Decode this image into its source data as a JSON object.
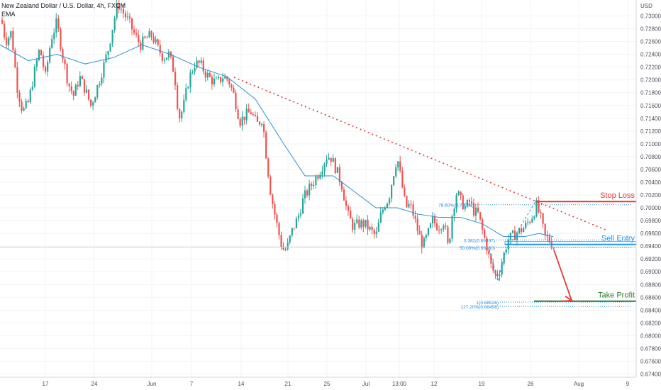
{
  "header": {
    "title": "New Zealand Dollar / U.S. Dollar, 4h, FXCM",
    "indicator": "EMA"
  },
  "colors": {
    "up": "#26a69a",
    "down": "#ef5350",
    "ema": "#2f8fd3",
    "trendline": "#e53935",
    "stop_loss": "#e53935",
    "sell_entry": "#2196f3",
    "take_profit": "#2e7d32",
    "fib": "#1f88e5",
    "last_price": "#f23645",
    "grid": "#f2f3f5"
  },
  "chart_data": {
    "type": "candlestick",
    "symbol": "NZDUSD",
    "timeframe": "4h",
    "yaxis": {
      "unit": "USD",
      "ylim": [
        0.6735,
        0.7325
      ],
      "ticks": [
        "0.73000",
        "0.72800",
        "0.72600",
        "0.72400",
        "0.72200",
        "0.72000",
        "0.71800",
        "0.71600",
        "0.71400",
        "0.71200",
        "0.71000",
        "0.70800",
        "0.70600",
        "0.70400",
        "0.70200",
        "0.70000",
        "0.69800",
        "0.69600",
        "0.69400",
        "0.69200",
        "0.69000",
        "0.68800",
        "0.68600",
        "0.68400",
        "0.68200",
        "0.68000",
        "0.67800",
        "0.67600",
        "0.67400"
      ]
    },
    "xaxis": {
      "labels": [
        "17",
        "24",
        "Jun",
        "7",
        "14",
        "21",
        "25",
        "Jul",
        "13:00",
        "12",
        "19",
        "26",
        "Aug",
        "9"
      ]
    },
    "price_path": [
      [
        0,
        0.7305
      ],
      [
        8,
        0.726
      ],
      [
        16,
        0.7275
      ],
      [
        24,
        0.719
      ],
      [
        32,
        0.715
      ],
      [
        40,
        0.7165
      ],
      [
        48,
        0.721
      ],
      [
        56,
        0.725
      ],
      [
        64,
        0.7205
      ],
      [
        72,
        0.7265
      ],
      [
        80,
        0.729
      ],
      [
        88,
        0.724
      ],
      [
        96,
        0.7195
      ],
      [
        104,
        0.7175
      ],
      [
        112,
        0.7205
      ],
      [
        120,
        0.7185
      ],
      [
        128,
        0.716
      ],
      [
        136,
        0.7185
      ],
      [
        144,
        0.7215
      ],
      [
        152,
        0.7245
      ],
      [
        160,
        0.729
      ],
      [
        166,
        0.732
      ],
      [
        174,
        0.7305
      ],
      [
        182,
        0.729
      ],
      [
        190,
        0.727
      ],
      [
        198,
        0.7255
      ],
      [
        206,
        0.7265
      ],
      [
        214,
        0.727
      ],
      [
        222,
        0.725
      ],
      [
        230,
        0.7235
      ],
      [
        238,
        0.724
      ],
      [
        246,
        0.721
      ],
      [
        252,
        0.714
      ],
      [
        258,
        0.7155
      ],
      [
        266,
        0.72
      ],
      [
        274,
        0.7225
      ],
      [
        282,
        0.7225
      ],
      [
        290,
        0.721
      ],
      [
        298,
        0.72
      ],
      [
        306,
        0.7195
      ],
      [
        314,
        0.7205
      ],
      [
        322,
        0.72
      ],
      [
        330,
        0.7175
      ],
      [
        338,
        0.7135
      ],
      [
        346,
        0.7145
      ],
      [
        354,
        0.715
      ],
      [
        362,
        0.713
      ],
      [
        370,
        0.714
      ],
      [
        376,
        0.7075
      ],
      [
        382,
        0.702
      ],
      [
        390,
        0.6975
      ],
      [
        398,
        0.6935
      ],
      [
        404,
        0.6935
      ],
      [
        412,
        0.6965
      ],
      [
        420,
        0.6985
      ],
      [
        428,
        0.7015
      ],
      [
        436,
        0.703
      ],
      [
        444,
        0.7045
      ],
      [
        452,
        0.706
      ],
      [
        460,
        0.708
      ],
      [
        466,
        0.708
      ],
      [
        474,
        0.706
      ],
      [
        482,
        0.7035
      ],
      [
        490,
        0.699
      ],
      [
        498,
        0.697
      ],
      [
        506,
        0.6975
      ],
      [
        514,
        0.6975
      ],
      [
        522,
        0.6965
      ],
      [
        530,
        0.6955
      ],
      [
        536,
        0.6985
      ],
      [
        542,
        0.7005
      ],
      [
        548,
        0.7015
      ],
      [
        554,
        0.705
      ],
      [
        560,
        0.708
      ],
      [
        566,
        0.704
      ],
      [
        572,
        0.7
      ],
      [
        578,
        0.7005
      ],
      [
        584,
        0.6985
      ],
      [
        590,
        0.696
      ],
      [
        596,
        0.694
      ],
      [
        602,
        0.6955
      ],
      [
        610,
        0.698
      ],
      [
        618,
        0.697
      ],
      [
        626,
        0.698
      ],
      [
        632,
        0.6935
      ],
      [
        638,
        0.6995
      ],
      [
        644,
        0.7025
      ],
      [
        650,
        0.701
      ],
      [
        656,
        0.7
      ],
      [
        662,
        0.701
      ],
      [
        668,
        0.6995
      ],
      [
        674,
        0.699
      ],
      [
        680,
        0.6965
      ],
      [
        686,
        0.694
      ],
      [
        692,
        0.691
      ],
      [
        698,
        0.6895
      ],
      [
        704,
        0.69
      ],
      [
        710,
        0.6925
      ],
      [
        716,
        0.695
      ],
      [
        722,
        0.6955
      ],
      [
        728,
        0.696
      ],
      [
        734,
        0.6965
      ],
      [
        740,
        0.697
      ],
      [
        746,
        0.698
      ],
      [
        752,
        0.699
      ],
      [
        756,
        0.7005
      ],
      [
        762,
        0.6985
      ],
      [
        768,
        0.6955
      ],
      [
        774,
        0.695
      ],
      [
        780,
        0.694
      ]
    ],
    "ema_path": [
      [
        0,
        0.7255
      ],
      [
        40,
        0.723
      ],
      [
        80,
        0.724
      ],
      [
        120,
        0.7225
      ],
      [
        160,
        0.7235
      ],
      [
        200,
        0.7255
      ],
      [
        240,
        0.724
      ],
      [
        280,
        0.722
      ],
      [
        320,
        0.7205
      ],
      [
        360,
        0.717
      ],
      [
        400,
        0.71
      ],
      [
        430,
        0.705
      ],
      [
        470,
        0.705
      ],
      [
        500,
        0.7025
      ],
      [
        530,
        0.7
      ],
      [
        560,
        0.7
      ],
      [
        590,
        0.699
      ],
      [
        620,
        0.6985
      ],
      [
        650,
        0.6985
      ],
      [
        680,
        0.6975
      ],
      [
        710,
        0.6955
      ],
      [
        740,
        0.6955
      ],
      [
        760,
        0.696
      ],
      [
        780,
        0.6955
      ]
    ],
    "trendline": {
      "from": [
        330,
        0.7204
      ],
      "to": [
        855,
        0.6965
      ]
    },
    "levels": {
      "stop_loss": {
        "label": "Stop Loss",
        "price": 0.70098,
        "tag": "0.70098",
        "x_from": 755
      },
      "sell_entry": {
        "label": "Sell Entry",
        "price": 0.69427,
        "tag": "0.69427",
        "x_from": 712
      },
      "take_profit": {
        "label": "Take Profit",
        "price": 0.6854,
        "tag": "0.68540",
        "x_from": 753
      },
      "last_price": {
        "price": 0.69385,
        "tag": "0.69385"
      }
    },
    "fib_lines": [
      {
        "label": "78.60%(0.70048)",
        "price": 0.70048
      },
      {
        "label": "0.382(0.69497)",
        "price": 0.69497
      },
      {
        "label": "50.00%(0.69380)",
        "price": 0.6938
      },
      {
        "label": "1(0.68526)",
        "price": 0.68526
      },
      {
        "label": "127.20%(0.68458)",
        "price": 0.68458
      }
    ],
    "abc_path": [
      [
        690,
        0.6935
      ],
      [
        702,
        0.6885
      ],
      [
        712,
        0.693
      ],
      [
        755,
        0.701
      ]
    ],
    "arrow": {
      "from": [
        781,
        0.6934
      ],
      "to": [
        806,
        0.6855
      ]
    },
    "grid": true,
    "legend": "top-left"
  }
}
